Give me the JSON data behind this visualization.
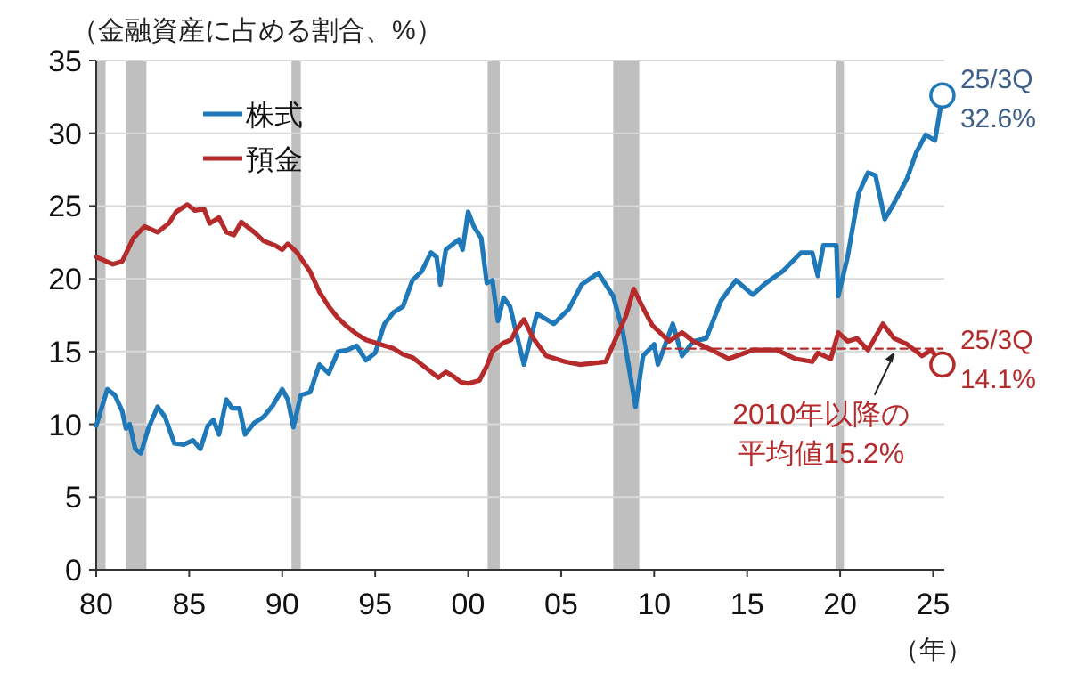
{
  "chart_data": {
    "type": "line",
    "ylabel": "（金融資産に占める割合、%）",
    "xlabel": "（年）",
    "xlim": [
      1980,
      2025.6
    ],
    "ylim": [
      0,
      35
    ],
    "xticks": [
      {
        "value": 1980,
        "label": "80"
      },
      {
        "value": 1985,
        "label": "85"
      },
      {
        "value": 1990,
        "label": "90"
      },
      {
        "value": 1995,
        "label": "95"
      },
      {
        "value": 2000,
        "label": "00"
      },
      {
        "value": 2005,
        "label": "05"
      },
      {
        "value": 2010,
        "label": "10"
      },
      {
        "value": 2015,
        "label": "15"
      },
      {
        "value": 2020,
        "label": "20"
      },
      {
        "value": 2025,
        "label": "25"
      }
    ],
    "yticks": [
      0,
      5,
      10,
      15,
      20,
      25,
      30,
      35
    ],
    "grid": "y",
    "legend": "top left",
    "line_style": "solid",
    "marker": "none",
    "series": [
      {
        "name": "株式",
        "color": "#1f78b8",
        "x": [
          1980.0,
          1980.6,
          1981.0,
          1981.4,
          1981.6,
          1981.8,
          1982.1,
          1982.4,
          1982.8,
          1983.3,
          1983.7,
          1984.2,
          1984.7,
          1985.2,
          1985.6,
          1986.0,
          1986.3,
          1986.6,
          1987.0,
          1987.3,
          1987.7,
          1988.0,
          1988.5,
          1989.0,
          1989.5,
          1990.0,
          1990.3,
          1990.6,
          1991.0,
          1991.5,
          1992.0,
          1992.5,
          1993.0,
          1993.5,
          1994.0,
          1994.5,
          1995.0,
          1995.5,
          1996.0,
          1996.5,
          1997.0,
          1997.5,
          1998.0,
          1998.3,
          1998.5,
          1998.8,
          1999.2,
          1999.5,
          1999.7,
          2000.0,
          2000.3,
          2000.7,
          2001.0,
          2001.3,
          2001.6,
          2001.9,
          2002.25,
          2002.6,
          2003.0,
          2003.7,
          2004.6,
          2005.4,
          2006.1,
          2007.0,
          2007.8,
          2008.3,
          2009.0,
          2009.4,
          2010.0,
          2010.2,
          2011.0,
          2011.5,
          2012.1,
          2012.8,
          2013.6,
          2014.4,
          2015.3,
          2016.0,
          2016.9,
          2017.9,
          2018.5,
          2018.8,
          2019.1,
          2019.8,
          2019.9,
          2020.4,
          2021.0,
          2021.5,
          2021.9,
          2022.4,
          2022.9,
          2023.6,
          2024.1,
          2024.6,
          2025.1,
          2025.5
        ],
        "values": [
          9.9,
          12.4,
          12.0,
          10.9,
          9.7,
          10.0,
          8.3,
          8.0,
          9.7,
          11.2,
          10.5,
          8.7,
          8.6,
          8.9,
          8.3,
          9.9,
          10.3,
          9.3,
          11.7,
          11.1,
          11.1,
          9.3,
          10.1,
          10.5,
          11.3,
          12.4,
          11.7,
          9.8,
          12.0,
          12.2,
          14.1,
          13.5,
          15.0,
          15.1,
          15.4,
          14.4,
          14.9,
          16.9,
          17.7,
          18.1,
          19.9,
          20.5,
          21.8,
          21.5,
          19.6,
          22.0,
          22.4,
          22.7,
          22.0,
          24.6,
          23.6,
          22.8,
          19.7,
          19.9,
          17.1,
          18.7,
          18.1,
          16.2,
          14.1,
          17.6,
          16.9,
          17.9,
          19.6,
          20.4,
          18.8,
          16.5,
          11.2,
          14.7,
          15.5,
          14.1,
          16.9,
          14.7,
          15.7,
          15.9,
          18.5,
          19.9,
          18.9,
          19.7,
          20.5,
          21.8,
          21.8,
          20.2,
          22.3,
          22.3,
          18.8,
          21.5,
          25.9,
          27.3,
          27.1,
          24.1,
          25.2,
          26.9,
          28.7,
          29.9,
          29.5,
          32.6
        ]
      },
      {
        "name": "預金",
        "color": "#b52a2a",
        "x": [
          1980.0,
          1980.9,
          1981.4,
          1982.0,
          1982.6,
          1983.3,
          1983.9,
          1984.3,
          1984.9,
          1985.3,
          1985.8,
          1986.1,
          1986.6,
          1987.0,
          1987.4,
          1987.8,
          1988.5,
          1989.0,
          1989.6,
          1990.0,
          1990.3,
          1990.8,
          1991.5,
          1992.0,
          1992.5,
          1993.0,
          1993.5,
          1994.0,
          1994.5,
          1995.0,
          1995.5,
          1996.0,
          1996.5,
          1997.0,
          1997.5,
          1998.0,
          1998.4,
          1998.8,
          1999.2,
          1999.6,
          2000.0,
          2000.6,
          2001.0,
          2001.3,
          2001.6,
          2001.9,
          2002.3,
          2002.6,
          2003.0,
          2003.5,
          2004.2,
          2005.2,
          2006.0,
          2007.4,
          2007.8,
          2008.5,
          2008.9,
          2009.4,
          2009.9,
          2010.8,
          2011.5,
          2012.1,
          2013.1,
          2014.0,
          2015.3,
          2016.6,
          2017.6,
          2018.5,
          2018.8,
          2019.5,
          2019.9,
          2020.4,
          2020.9,
          2021.5,
          2022.3,
          2022.9,
          2023.6,
          2024.4,
          2024.9,
          2025.5
        ],
        "values": [
          21.5,
          21.0,
          21.2,
          22.8,
          23.6,
          23.2,
          23.8,
          24.6,
          25.1,
          24.7,
          24.8,
          23.8,
          24.2,
          23.2,
          23.0,
          23.9,
          23.2,
          22.6,
          22.3,
          22.0,
          22.4,
          21.8,
          20.5,
          19.1,
          18.1,
          17.3,
          16.7,
          16.2,
          15.8,
          15.6,
          15.4,
          15.2,
          14.8,
          14.6,
          14.1,
          13.6,
          13.2,
          13.6,
          13.3,
          12.9,
          12.8,
          13.0,
          14.0,
          15.0,
          15.3,
          15.6,
          15.8,
          16.5,
          17.2,
          15.9,
          14.7,
          14.3,
          14.1,
          14.3,
          15.5,
          17.5,
          19.3,
          18.0,
          16.8,
          15.7,
          16.3,
          15.7,
          15.1,
          14.5,
          15.1,
          15.1,
          14.5,
          14.3,
          14.9,
          14.5,
          16.3,
          15.7,
          15.9,
          15.1,
          16.9,
          15.9,
          15.5,
          14.7,
          15.1,
          14.1
        ]
      },
      {
        "type": "line",
        "line_style": "dashed",
        "color": "#b52a2a",
        "x": [
          2010.5,
          2025.5
        ],
        "values": [
          15.2,
          15.2
        ]
      },
      {
        "type": "scatter",
        "marker": "circle",
        "color": "#1f78b8",
        "x": [
          2025.5
        ],
        "values": [
          32.6
        ],
        "value_labels": [
          "25/3Q\n32.6%"
        ]
      },
      {
        "type": "scatter",
        "marker": "circle",
        "color": "#b52a2a",
        "x": [
          2025.5
        ],
        "values": [
          14.1
        ],
        "value_labels": [
          "25/3Q\n14.1%"
        ]
      }
    ],
    "bands": [
      {
        "axis": "x",
        "from": 1980.0,
        "to": 1980.5,
        "color": "#bfbfbf"
      },
      {
        "axis": "x",
        "from": 1981.6,
        "to": 1982.7,
        "color": "#bfbfbf"
      },
      {
        "axis": "x",
        "from": 1990.5,
        "to": 1991.0,
        "color": "#bfbfbf"
      },
      {
        "axis": "x",
        "from": 2001.05,
        "to": 2001.7,
        "color": "#bfbfbf"
      },
      {
        "axis": "x",
        "from": 2007.8,
        "to": 2009.2,
        "color": "#bfbfbf"
      },
      {
        "axis": "x",
        "from": 2019.8,
        "to": 2020.2,
        "color": "#bfbfbf"
      }
    ],
    "annotations": [
      {
        "text": "2010年以降の平均値15.2%",
        "x": 2023.0,
        "y": 15.2
      }
    ]
  }
}
